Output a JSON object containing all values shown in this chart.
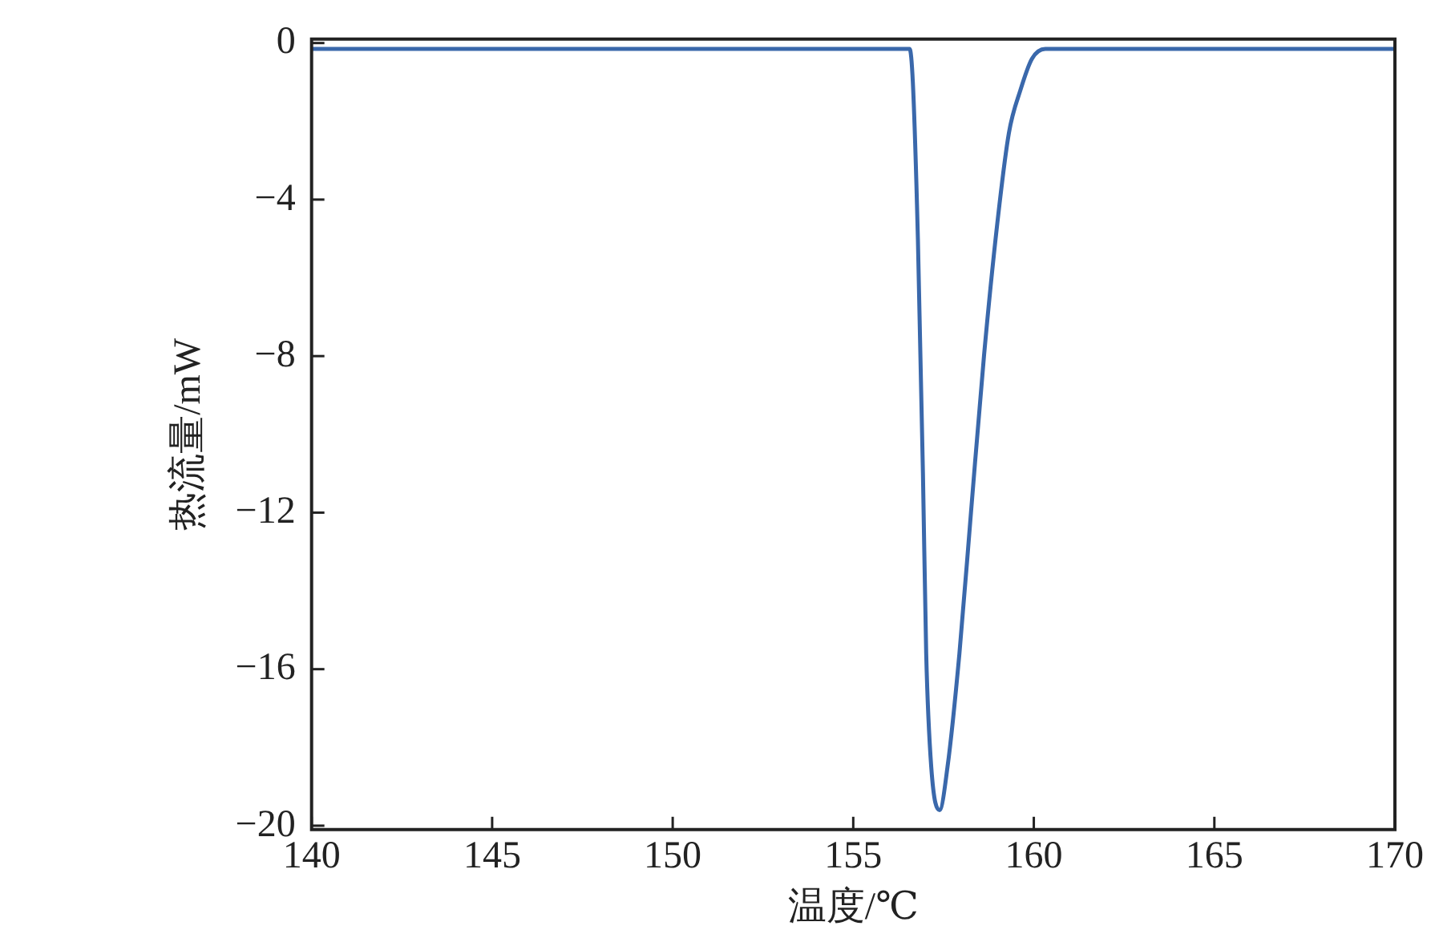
{
  "chart_data": {
    "type": "line",
    "xlabel": "温度/℃",
    "ylabel": "热流量/mW",
    "xlim": [
      140,
      170
    ],
    "ylim": [
      -20.1,
      0.1
    ],
    "xticks": [
      140,
      145,
      150,
      155,
      160,
      165,
      170
    ],
    "yticks": [
      0,
      -4,
      -8,
      -12,
      -16,
      -20
    ],
    "grid": false,
    "legend": false,
    "marker": "none",
    "line_style": "solid",
    "series": [
      {
        "color": "#3a68ab",
        "x": [
          140,
          145,
          150,
          155,
          156.56,
          156.65,
          156.79,
          156.93,
          157.02,
          157.16,
          157.39,
          157.61,
          157.94,
          158.26,
          158.62,
          158.99,
          159.31,
          159.63,
          159.95,
          160.32,
          162,
          165,
          170
        ],
        "values": [
          -0.15,
          -0.15,
          -0.15,
          -0.15,
          -0.15,
          -1,
          -5,
          -11,
          -15.6,
          -18.5,
          -19.6,
          -18.5,
          -15.6,
          -12,
          -8,
          -4.6,
          -2.3,
          -1.2,
          -0.4,
          -0.15,
          -0.15,
          -0.15,
          -0.15
        ]
      }
    ]
  }
}
